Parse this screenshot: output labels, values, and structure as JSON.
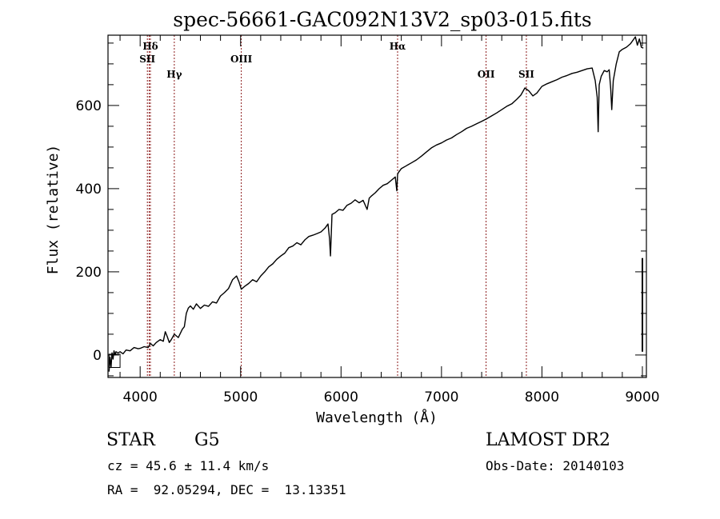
{
  "chart_data": {
    "type": "line",
    "title": "spec-56661-GAC092N13V2_sp03-015.fits",
    "xlabel": "Wavelength (Å)",
    "ylabel": "Flux (relative)",
    "xlim": [
      3680,
      9040
    ],
    "ylim": [
      -54,
      769
    ],
    "grid": false,
    "legend": "none",
    "x_ticks": [
      4000,
      5000,
      6000,
      7000,
      8000,
      9000
    ],
    "x_tick_labels": [
      "4000",
      "5000",
      "6000",
      "7000",
      "8000",
      "9000"
    ],
    "x_minor_step": 200,
    "y_ticks": [
      0,
      200,
      400,
      600
    ],
    "y_tick_labels": [
      "0",
      "200",
      "400",
      "600"
    ],
    "y_minor_step": 50,
    "series": [
      {
        "name": "spectrum",
        "color": "#000000",
        "x": [
          3690,
          3700,
          3710,
          3720,
          3730,
          3740,
          3750,
          3760,
          3780,
          3800,
          3830,
          3860,
          3900,
          3940,
          3980,
          4000,
          4040,
          4080,
          4102,
          4130,
          4160,
          4200,
          4230,
          4250,
          4270,
          4290,
          4310,
          4340,
          4380,
          4420,
          4440,
          4460,
          4480,
          4500,
          4530,
          4560,
          4600,
          4640,
          4680,
          4720,
          4760,
          4800,
          4840,
          4880,
          4920,
          4960,
          4985,
          5007,
          5040,
          5080,
          5120,
          5160,
          5200,
          5240,
          5280,
          5320,
          5360,
          5400,
          5440,
          5480,
          5520,
          5560,
          5600,
          5640,
          5680,
          5720,
          5760,
          5800,
          5840,
          5870,
          5885,
          5895,
          5910,
          5940,
          5980,
          6020,
          6060,
          6100,
          6140,
          6180,
          6220,
          6260,
          6280,
          6300,
          6340,
          6380,
          6420,
          6460,
          6500,
          6540,
          6555,
          6563,
          6575,
          6600,
          6650,
          6700,
          6750,
          6800,
          6850,
          6900,
          6950,
          7000,
          7050,
          7100,
          7150,
          7200,
          7250,
          7300,
          7350,
          7400,
          7450,
          7500,
          7550,
          7600,
          7650,
          7700,
          7750,
          7790,
          7830,
          7870,
          7910,
          7950,
          8000,
          8050,
          8100,
          8150,
          8200,
          8250,
          8300,
          8350,
          8400,
          8450,
          8500,
          8530,
          8550,
          8560,
          8570,
          8590,
          8620,
          8650,
          8670,
          8685,
          8695,
          8710,
          8740,
          8770,
          8800,
          8840,
          8880,
          8910,
          8930,
          8950,
          8970,
          8990,
          9010
        ],
        "y": [
          -40,
          -5,
          -30,
          5,
          -10,
          10,
          0,
          8,
          5,
          8,
          3,
          12,
          10,
          18,
          15,
          16,
          20,
          18,
          28,
          22,
          30,
          37,
          33,
          56,
          44,
          30,
          37,
          50,
          42,
          62,
          68,
          100,
          113,
          118,
          110,
          123,
          112,
          120,
          117,
          128,
          125,
          142,
          150,
          160,
          181,
          190,
          175,
          158,
          165,
          172,
          181,
          176,
          190,
          200,
          212,
          219,
          230,
          238,
          245,
          258,
          262,
          270,
          265,
          277,
          285,
          288,
          292,
          296,
          305,
          315,
          280,
          238,
          338,
          342,
          350,
          348,
          360,
          365,
          373,
          366,
          372,
          350,
          377,
          382,
          390,
          400,
          408,
          412,
          420,
          428,
          395,
          435,
          440,
          448,
          455,
          462,
          469,
          478,
          488,
          498,
          505,
          510,
          517,
          522,
          530,
          537,
          545,
          550,
          556,
          562,
          568,
          575,
          582,
          590,
          598,
          604,
          615,
          625,
          642,
          635,
          623,
          630,
          646,
          652,
          657,
          662,
          668,
          672,
          677,
          680,
          684,
          688,
          690,
          660,
          620,
          537,
          650,
          670,
          684,
          681,
          686,
          640,
          590,
          660,
          700,
          729,
          735,
          740,
          748,
          758,
          765,
          745,
          760,
          740,
          738
        ]
      },
      {
        "name": "bad-pixel-spike",
        "color": "#000000",
        "x": [
          9000,
          9000
        ],
        "y": [
          8,
          233
        ]
      }
    ],
    "annotations": [
      {
        "label": "Hδ",
        "wavelength": 4102,
        "row": 1
      },
      {
        "label": "SII",
        "wavelength": 4072,
        "row": 2
      },
      {
        "label": "Hγ",
        "wavelength": 4340,
        "row": 3
      },
      {
        "label": "OIII",
        "wavelength": 5007,
        "row": 2
      },
      {
        "label": "Hα",
        "wavelength": 6563,
        "row": 1
      },
      {
        "label": "OII",
        "wavelength": 7444,
        "row": 3
      },
      {
        "label": "SII",
        "wavelength": 7845,
        "row": 3
      }
    ],
    "annotation_line_color": "#8b1a1a"
  },
  "info": {
    "object_class": "STAR",
    "subclass": "G5",
    "survey": "LAMOST DR2",
    "redshift_line": "cz = 45.6 ± 11.4 km/s",
    "obs_date_line": "Obs-Date: 20140103",
    "coords_line": "RA =  92.05294, DEC =  13.13351"
  }
}
